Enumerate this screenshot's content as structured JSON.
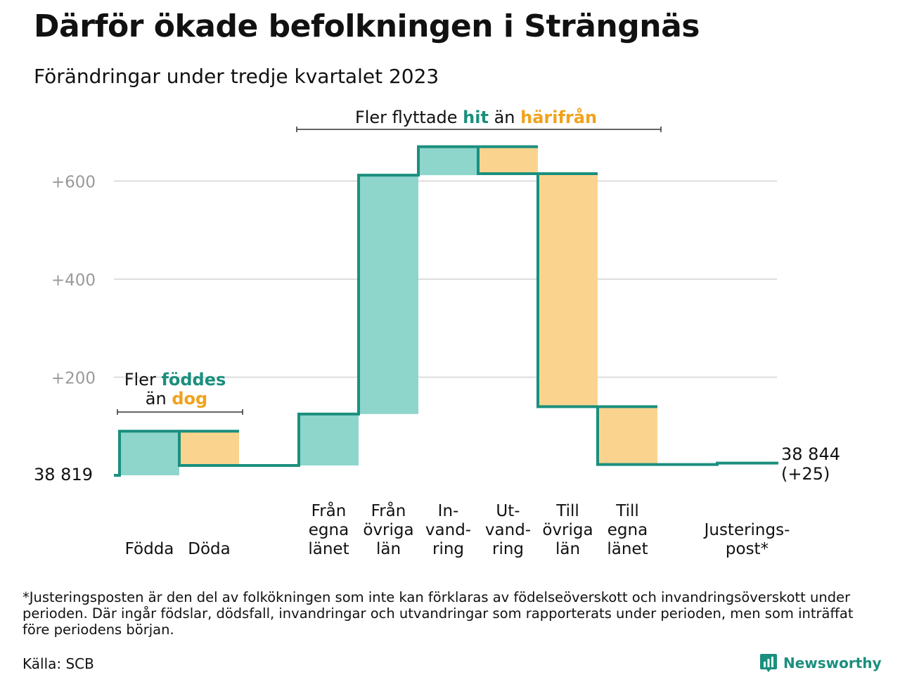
{
  "title": "Därför ökade befolkningen i Strängnäs",
  "subtitle": "Förändringar under tredje kvartalet 2023",
  "colors": {
    "inflow_fill": "#8ed5cc",
    "outflow_fill": "#fad48e",
    "line": "#1b8f7e",
    "highlight_in": "#1b8f7e",
    "highlight_out": "#f0a21c",
    "grid": "#dddddd",
    "tick_text": "#9a9a9a"
  },
  "chart_data": {
    "type": "bar",
    "subtype": "waterfall",
    "ylim": [
      0,
      700
    ],
    "yticks": [
      {
        "value": 200,
        "label": "+200"
      },
      {
        "value": 400,
        "label": "+400"
      },
      {
        "value": 600,
        "label": "+600"
      }
    ],
    "grid": true,
    "start": {
      "label": "38  819",
      "value": 0
    },
    "end": {
      "label_line1": "38 844",
      "label_line2": "(+25)",
      "value": 25
    },
    "steps": [
      {
        "lines": [
          "Födda"
        ],
        "kind": "in",
        "from": 0,
        "to": 90
      },
      {
        "lines": [
          "Döda"
        ],
        "kind": "out",
        "from": 90,
        "to": 20
      },
      {
        "lines": [],
        "kind": "gap",
        "from": 20,
        "to": 20
      },
      {
        "lines": [
          "Från",
          "egna",
          "länet"
        ],
        "kind": "in",
        "from": 20,
        "to": 125
      },
      {
        "lines": [
          "Från",
          "övriga",
          "län"
        ],
        "kind": "in",
        "from": 125,
        "to": 612
      },
      {
        "lines": [
          "In-",
          "vand-",
          "ring"
        ],
        "kind": "in",
        "from": 612,
        "to": 670
      },
      {
        "lines": [
          "Ut-",
          "vand-",
          "ring"
        ],
        "kind": "out",
        "from": 670,
        "to": 615
      },
      {
        "lines": [
          "Till",
          "övriga",
          "län"
        ],
        "kind": "out",
        "from": 615,
        "to": 140
      },
      {
        "lines": [
          "Till",
          "egna",
          "länet"
        ],
        "kind": "out",
        "from": 140,
        "to": 22
      },
      {
        "lines": [],
        "kind": "gap",
        "from": 22,
        "to": 22
      },
      {
        "lines": [
          "Justerings-",
          "post*"
        ],
        "kind": "adj",
        "from": 22,
        "to": 25
      }
    ],
    "annotations": {
      "births": {
        "line1_pre": "Fler ",
        "line1_hl": "föddes",
        "line2_pre": "än ",
        "line2_hl": "dog"
      },
      "migration": {
        "pre": "Fler flyttade ",
        "hl1": "hit",
        "mid": " än ",
        "hl2": "härifrån"
      }
    }
  },
  "footnote": "*Justeringsposten är den del av folkökningen som inte kan förklaras av födelseöverskott och invandringsöverskott under perioden. Där ingår födslar, dödsfall, invandringar och utvandringar som rapporterats under perioden, men som inträffat före periodens början.",
  "source": "Källa: SCB",
  "brand": {
    "name": "Newsworthy",
    "icon": "bar-chart-logo-icon"
  }
}
